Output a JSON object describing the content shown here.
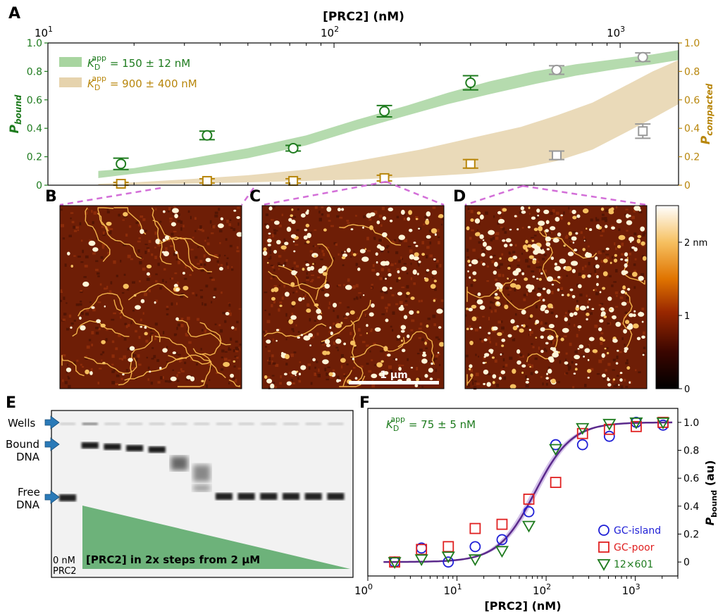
{
  "colors": {
    "green": "#1e7b1e",
    "gold": "#b8860b",
    "band_green": "#a8d5a0",
    "band_gold": "#e6d3ad",
    "grey": "#999999",
    "blue": "#1f1fd6",
    "red": "#e02020",
    "purple": "#5b2a8c",
    "gel_arrow": "#2a7ab8",
    "gel_triangle": "#6db27a",
    "dash": "#d36fd8"
  },
  "panel_letters": {
    "a": "A",
    "b": "B",
    "c": "C",
    "d": "D",
    "e": "E",
    "f": "F"
  },
  "chart_data": [
    {
      "type": "scatter",
      "panel": "A",
      "title": "",
      "xlabel": "[PRC2] (nM)",
      "xscale": "log",
      "xlim": [
        10,
        1600
      ],
      "x_ticks": [
        {
          "value": 10,
          "base": "10",
          "exp": "1"
        },
        {
          "value": 100,
          "base": "10",
          "exp": "2"
        },
        {
          "value": 1000,
          "base": "10",
          "exp": "3"
        }
      ],
      "ylabel_left": {
        "main": "P",
        "sub": "bound"
      },
      "ylabel_right": {
        "main": "P",
        "sub": "compacted"
      },
      "ylim": [
        0,
        1.0
      ],
      "y_ticks_left": [
        "0",
        "0.2",
        "0.4",
        "0.6",
        "0.8",
        "1.0"
      ],
      "y_ticks_right": [
        "0",
        "0.2",
        "0.4",
        "0.6",
        "0.8",
        "1.0"
      ],
      "legend": [
        {
          "prefix": "K",
          "sub": "D",
          "sup": "app",
          "value": " = 150 ± 12 nM",
          "color_key": "green",
          "swatch": "band_green"
        },
        {
          "prefix": "K",
          "sub": "D",
          "sup": "app",
          "value": " = 900 ± 400 nM",
          "color_key": "gold",
          "swatch": "band_gold"
        }
      ],
      "bound_points": [
        {
          "x": 18,
          "y": 0.15,
          "err": 0.04,
          "gray": false
        },
        {
          "x": 36,
          "y": 0.35,
          "err": 0.03,
          "gray": false
        },
        {
          "x": 72,
          "y": 0.26,
          "err": 0.02,
          "gray": false
        },
        {
          "x": 150,
          "y": 0.52,
          "err": 0.04,
          "gray": false
        },
        {
          "x": 300,
          "y": 0.72,
          "err": 0.05,
          "gray": false
        },
        {
          "x": 600,
          "y": 0.81,
          "err": 0.03,
          "gray": true
        },
        {
          "x": 1200,
          "y": 0.9,
          "err": 0.03,
          "gray": true
        }
      ],
      "compacted_points": [
        {
          "x": 18,
          "y": 0.01,
          "err": 0.01,
          "gray": false
        },
        {
          "x": 36,
          "y": 0.03,
          "err": 0.015,
          "gray": false
        },
        {
          "x": 72,
          "y": 0.03,
          "err": 0.015,
          "gray": false
        },
        {
          "x": 150,
          "y": 0.05,
          "err": 0.02,
          "gray": false
        },
        {
          "x": 300,
          "y": 0.15,
          "err": 0.03,
          "gray": false
        },
        {
          "x": 600,
          "y": 0.21,
          "err": 0.03,
          "gray": true
        },
        {
          "x": 1200,
          "y": 0.38,
          "err": 0.05,
          "gray": true
        }
      ],
      "bound_band": {
        "x": [
          15,
          20,
          30,
          50,
          80,
          120,
          180,
          250,
          350,
          500,
          700,
          1000,
          1300,
          1600
        ],
        "lower": [
          0.05,
          0.08,
          0.12,
          0.19,
          0.28,
          0.39,
          0.49,
          0.57,
          0.64,
          0.71,
          0.77,
          0.82,
          0.85,
          0.88
        ],
        "upper": [
          0.1,
          0.12,
          0.18,
          0.26,
          0.35,
          0.46,
          0.56,
          0.65,
          0.73,
          0.8,
          0.85,
          0.89,
          0.92,
          0.95
        ]
      },
      "compacted_band": {
        "x": [
          15,
          20,
          30,
          50,
          80,
          120,
          200,
          300,
          450,
          600,
          800,
          1000,
          1300,
          1600
        ],
        "lower": [
          0.0,
          0.005,
          0.01,
          0.02,
          0.03,
          0.04,
          0.06,
          0.08,
          0.12,
          0.17,
          0.25,
          0.35,
          0.47,
          0.57
        ],
        "upper": [
          0.01,
          0.02,
          0.04,
          0.07,
          0.11,
          0.17,
          0.25,
          0.33,
          0.41,
          0.49,
          0.58,
          0.68,
          0.8,
          0.88
        ]
      }
    },
    {
      "type": "scatter",
      "panel": "F",
      "title": "",
      "xlabel": "[PRC2] (nM)",
      "xscale": "log",
      "xlim": [
        1,
        3000
      ],
      "x_ticks": [
        {
          "value": 1,
          "base": "10",
          "exp": "0"
        },
        {
          "value": 10,
          "base": "10",
          "exp": "1"
        },
        {
          "value": 100,
          "base": "10",
          "exp": "2"
        },
        {
          "value": 1000,
          "base": "10",
          "exp": "3"
        }
      ],
      "ylabel": {
        "main": "P",
        "sub": "bound",
        "unit": " (au)"
      },
      "ylim": [
        -0.1,
        1.1
      ],
      "y_ticks": [
        "0",
        "0.2",
        "0.4",
        "0.6",
        "0.8",
        "1.0"
      ],
      "annotation": {
        "prefix": "K",
        "sub": "D",
        "sup": "app",
        "value": " = 75 ± 5 nM"
      },
      "fit": {
        "kd": 75,
        "hill": 2.1
      },
      "series": [
        {
          "name": "GC-island",
          "marker": "circle",
          "color_key": "blue",
          "x": [
            2,
            4,
            8,
            16,
            32,
            64,
            128,
            256,
            512,
            1024,
            2048
          ],
          "y": [
            0.0,
            0.1,
            0.0,
            0.11,
            0.16,
            0.36,
            0.84,
            0.84,
            0.9,
            1.0,
            0.98
          ]
        },
        {
          "name": "GC-poor",
          "marker": "square",
          "color_key": "red",
          "x": [
            2,
            4,
            8,
            16,
            32,
            64,
            128,
            256,
            512,
            1024,
            2048
          ],
          "y": [
            0.0,
            0.09,
            0.11,
            0.24,
            0.27,
            0.45,
            0.57,
            0.92,
            0.95,
            0.97,
            1.0
          ]
        },
        {
          "name": "12×601",
          "marker": "triangle",
          "color_key": "green",
          "x": [
            2,
            4,
            8,
            16,
            32,
            64,
            128,
            256,
            512,
            1024,
            2048
          ],
          "y": [
            0.0,
            0.02,
            0.04,
            0.02,
            0.08,
            0.26,
            0.81,
            0.96,
            0.99,
            1.0,
            1.0
          ]
        }
      ]
    }
  ],
  "afm": {
    "colorbar_labels": [
      "2 nm",
      "1",
      "0"
    ],
    "colorbar_values": [
      2,
      1,
      0
    ],
    "colorbar_max": 2.5,
    "scalebar_label": "1 µm"
  },
  "gel": {
    "labels": {
      "wells": "Wells",
      "bound_1": "Bound",
      "bound_2": "DNA",
      "free_1": "Free",
      "free_2": "DNA"
    },
    "zero_label_1": "0 nM",
    "zero_label_2": "PRC2",
    "gradient_label": "[PRC2] in 2x steps from 2 µM",
    "lanes": 13
  }
}
